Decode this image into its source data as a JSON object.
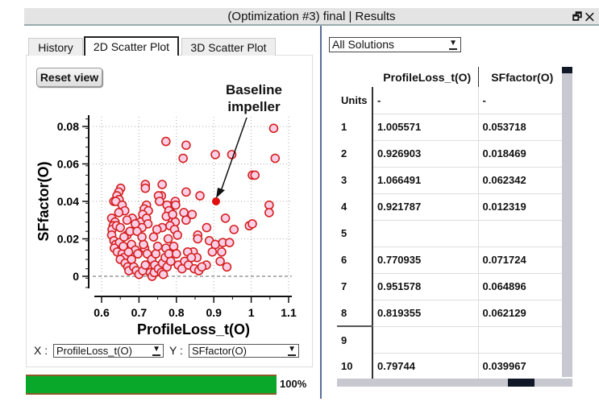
{
  "window": {
    "title": "(Optimization #3) final | Results",
    "restore_icon": "restore-icon",
    "close_icon": "close-icon",
    "restore_glyph": "🗗",
    "close_glyph": "✕"
  },
  "tabs": [
    {
      "label": "History"
    },
    {
      "label": "2D Scatter Plot",
      "active": true
    },
    {
      "label": "3D Scatter Plot"
    }
  ],
  "reset_label": "Reset view",
  "annotation": {
    "line1": "Baseline",
    "line2": "impeller"
  },
  "axis_selectors": {
    "x_label": "X :",
    "x_value": "ProfileLoss_t(O)",
    "y_label": "Y :",
    "y_value": "SFfactor(O)"
  },
  "progress": {
    "value": 100,
    "label": "100%",
    "color": "#0aa82a"
  },
  "solutions_filter": "All Solutions",
  "table": {
    "columns": [
      "ProfileLoss_t(O)",
      "SFfactor(O)"
    ],
    "rows": [
      {
        "label": "Units",
        "c1": "-",
        "c2": "-"
      },
      {
        "label": "1",
        "c1": "1.005571",
        "c2": "0.053718"
      },
      {
        "label": "2",
        "c1": "0.926903",
        "c2": "0.018469"
      },
      {
        "label": "3",
        "c1": "1.066491",
        "c2": "0.062342"
      },
      {
        "label": "4",
        "c1": "0.921787",
        "c2": "0.012319"
      },
      {
        "label": "5",
        "c1": "",
        "c2": ""
      },
      {
        "label": "6",
        "c1": "0.770935",
        "c2": "0.071724"
      },
      {
        "label": "7",
        "c1": "0.951578",
        "c2": "0.064896"
      },
      {
        "label": "8",
        "c1": "0.819355",
        "c2": "0.062129"
      },
      {
        "label": "9",
        "c1": "",
        "c2": ""
      },
      {
        "label": "10",
        "c1": "0.79744",
        "c2": "0.039967"
      }
    ]
  },
  "chart_data": {
    "type": "scatter",
    "xlabel": "ProfileLoss_t(O)",
    "ylabel": "SFfactor(O)",
    "xlim": [
      0.58,
      1.12
    ],
    "ylim": [
      -0.008,
      0.086
    ],
    "xticks": [
      "0.6",
      "0.7",
      "0.8",
      "0.9",
      "1",
      "1.1"
    ],
    "xtick_values": [
      0.6,
      0.7,
      0.8,
      0.9,
      1.0,
      1.1
    ],
    "yticks": [
      "0",
      "0.02",
      "0.04",
      "0.06",
      "0.08"
    ],
    "ytick_values": [
      0,
      0.02,
      0.04,
      0.06,
      0.08
    ],
    "grid": true,
    "marker_color": "#d42020",
    "marker_fill": "#fbd0e6",
    "baseline": {
      "x": 0.906,
      "y": 0.04,
      "color": "#e01010"
    },
    "points": [
      [
        1.06,
        0.079
      ],
      [
        0.772,
        0.072
      ],
      [
        0.826,
        0.07
      ],
      [
        0.818,
        0.063
      ],
      [
        0.904,
        0.065
      ],
      [
        0.948,
        0.065
      ],
      [
        1.064,
        0.063
      ],
      [
        1.003,
        0.054
      ],
      [
        1.01,
        0.054
      ],
      [
        0.826,
        0.045
      ],
      [
        0.863,
        0.043
      ],
      [
        1.048,
        0.038
      ],
      [
        1.048,
        0.034
      ],
      [
        0.931,
        0.031
      ],
      [
        0.954,
        0.025
      ],
      [
        0.995,
        0.027
      ],
      [
        1.003,
        0.028
      ],
      [
        0.881,
        0.026
      ],
      [
        0.888,
        0.019
      ],
      [
        0.904,
        0.017
      ],
      [
        0.924,
        0.018
      ],
      [
        0.942,
        0.018
      ],
      [
        0.896,
        0.013
      ],
      [
        0.921,
        0.013
      ],
      [
        0.917,
        0.008
      ],
      [
        0.935,
        0.005
      ],
      [
        0.88,
        0.006
      ],
      [
        0.717,
        0.049
      ],
      [
        0.717,
        0.047
      ],
      [
        0.762,
        0.049
      ],
      [
        0.76,
        0.043
      ],
      [
        0.752,
        0.043
      ],
      [
        0.755,
        0.04
      ],
      [
        0.797,
        0.04
      ],
      [
        0.785,
        0.037
      ],
      [
        0.775,
        0.038
      ],
      [
        0.78,
        0.035
      ],
      [
        0.798,
        0.038
      ],
      [
        0.72,
        0.038
      ],
      [
        0.714,
        0.036
      ],
      [
        0.725,
        0.035
      ],
      [
        0.71,
        0.033
      ],
      [
        0.704,
        0.029
      ],
      [
        0.72,
        0.031
      ],
      [
        0.724,
        0.028
      ],
      [
        0.708,
        0.026
      ],
      [
        0.762,
        0.026
      ],
      [
        0.79,
        0.03
      ],
      [
        0.797,
        0.029
      ],
      [
        0.783,
        0.027
      ],
      [
        0.795,
        0.025
      ],
      [
        0.773,
        0.032
      ],
      [
        0.82,
        0.034
      ],
      [
        0.826,
        0.03
      ],
      [
        0.842,
        0.033
      ],
      [
        0.857,
        0.022
      ],
      [
        0.857,
        0.02
      ],
      [
        0.845,
        0.013
      ],
      [
        0.855,
        0.01
      ],
      [
        0.651,
        0.047
      ],
      [
        0.646,
        0.045
      ],
      [
        0.641,
        0.043
      ],
      [
        0.647,
        0.041
      ],
      [
        0.633,
        0.04
      ],
      [
        0.638,
        0.04
      ],
      [
        0.655,
        0.038
      ],
      [
        0.662,
        0.035
      ],
      [
        0.646,
        0.034
      ],
      [
        0.627,
        0.031
      ],
      [
        0.636,
        0.029
      ],
      [
        0.631,
        0.027
      ],
      [
        0.628,
        0.025
      ],
      [
        0.64,
        0.027
      ],
      [
        0.65,
        0.026
      ],
      [
        0.627,
        0.022
      ],
      [
        0.633,
        0.019
      ],
      [
        0.638,
        0.017
      ],
      [
        0.648,
        0.018
      ],
      [
        0.634,
        0.015
      ],
      [
        0.642,
        0.013
      ],
      [
        0.655,
        0.012
      ],
      [
        0.66,
        0.01
      ],
      [
        0.65,
        0.009
      ],
      [
        0.663,
        0.007
      ],
      [
        0.67,
        0.005
      ],
      [
        0.673,
        0.003
      ],
      [
        0.68,
        0.009
      ],
      [
        0.668,
        0.022
      ],
      [
        0.676,
        0.024
      ],
      [
        0.682,
        0.031
      ],
      [
        0.69,
        0.028
      ],
      [
        0.695,
        0.024
      ],
      [
        0.668,
        0.03
      ],
      [
        0.66,
        0.021
      ],
      [
        0.68,
        0.017
      ],
      [
        0.69,
        0.014
      ],
      [
        0.697,
        0.012
      ],
      [
        0.686,
        0.005
      ],
      [
        0.693,
        0.003
      ],
      [
        0.7,
        0.001
      ],
      [
        0.71,
        0.003
      ],
      [
        0.717,
        0.006
      ],
      [
        0.715,
        0.015
      ],
      [
        0.722,
        0.012
      ],
      [
        0.712,
        0.017
      ],
      [
        0.73,
        0.002
      ],
      [
        0.735,
        0.0
      ],
      [
        0.741,
        0.002
      ],
      [
        0.734,
        0.009
      ],
      [
        0.745,
        0.012
      ],
      [
        0.75,
        0.016
      ],
      [
        0.742,
        0.006
      ],
      [
        0.752,
        0.004
      ],
      [
        0.76,
        0.002
      ],
      [
        0.765,
        0.001
      ],
      [
        0.763,
        0.007
      ],
      [
        0.77,
        0.01
      ],
      [
        0.772,
        0.015
      ],
      [
        0.778,
        0.02
      ],
      [
        0.775,
        0.005
      ],
      [
        0.78,
        0.012
      ],
      [
        0.785,
        0.008
      ],
      [
        0.793,
        0.016
      ],
      [
        0.8,
        0.012
      ],
      [
        0.805,
        0.006
      ],
      [
        0.815,
        0.004
      ],
      [
        0.822,
        0.008
      ],
      [
        0.83,
        0.013
      ],
      [
        0.832,
        0.006
      ],
      [
        0.84,
        0.01
      ],
      [
        0.848,
        0.004
      ],
      [
        0.86,
        0.003
      ],
      [
        0.868,
        0.005
      ],
      [
        0.803,
        0.022
      ],
      [
        0.748,
        0.025
      ],
      [
        0.79,
        0.033
      ],
      [
        0.739,
        0.021
      ],
      [
        0.708,
        0.021
      ],
      [
        0.672,
        0.013
      ],
      [
        0.658,
        0.016
      ]
    ]
  }
}
